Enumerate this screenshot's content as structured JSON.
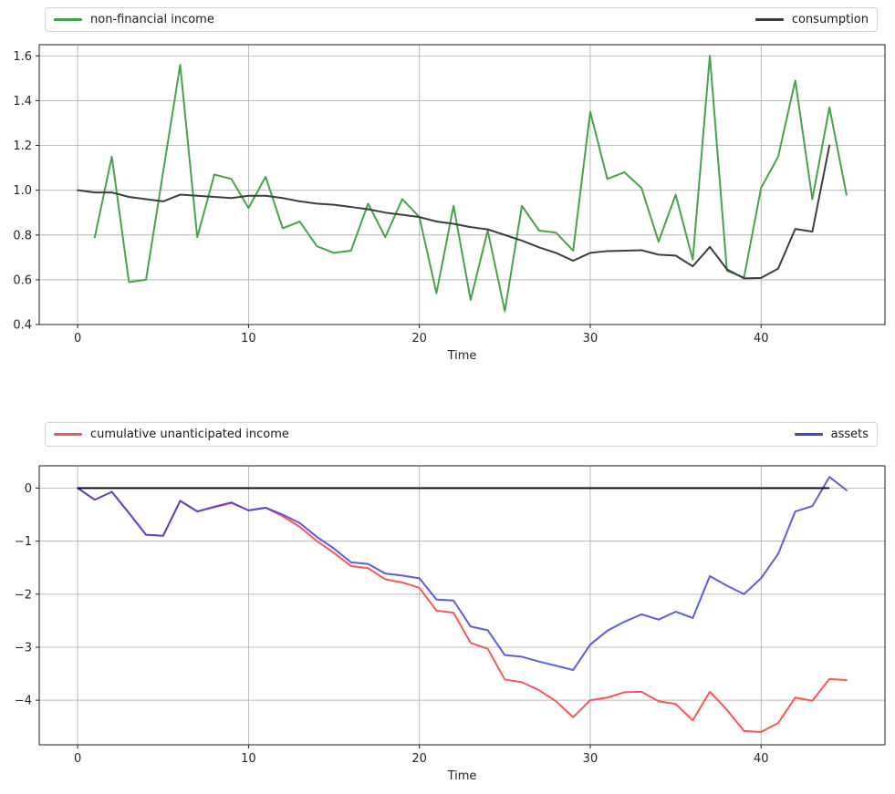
{
  "figure": {
    "background": "#ffffff",
    "grid_color": "#b4b4b4",
    "spine_color": "#1f1f1f",
    "tick_text_color": "#262626"
  },
  "chart_data": [
    {
      "type": "line",
      "title": "",
      "xlabel": "Time",
      "ylabel": "",
      "grid": true,
      "legend_position": "above plot, full-width box, items left and right",
      "xlim": [
        -2.25,
        47.25
      ],
      "ylim": [
        0.4,
        1.65
      ],
      "xticks": [
        0,
        10,
        20,
        30,
        40
      ],
      "xtick_labels": [
        "0",
        "10",
        "20",
        "30",
        "40"
      ],
      "yticks": [
        0.4,
        0.6,
        0.8,
        1.0,
        1.2,
        1.4,
        1.6
      ],
      "ytick_labels": [
        "0.4",
        "0.6",
        "0.8",
        "1.0",
        "1.2",
        "1.4",
        "1.6"
      ],
      "series": [
        {
          "name": "non-financial income",
          "color": "#46a34b",
          "opacity": 1,
          "line_width": 2,
          "x_start": 1,
          "values": [
            0.79,
            1.15,
            0.59,
            0.6,
            1.08,
            1.56,
            0.79,
            1.07,
            1.05,
            0.92,
            1.06,
            0.83,
            0.86,
            0.75,
            0.72,
            0.73,
            0.94,
            0.79,
            0.96,
            0.88,
            0.54,
            0.93,
            0.51,
            0.82,
            0.46,
            0.93,
            0.82,
            0.81,
            0.73,
            1.35,
            1.05,
            1.08,
            1.01,
            0.77,
            0.98,
            0.69,
            1.6,
            0.64,
            0.61,
            1.01,
            1.15,
            1.49,
            0.96,
            1.37,
            0.98
          ]
        },
        {
          "name": "consumption",
          "color": "#3d3d3d",
          "opacity": 1,
          "line_width": 2,
          "x_start": 0,
          "values": [
            1.0,
            0.99,
            0.99,
            0.97,
            0.96,
            0.95,
            0.98,
            0.975,
            0.97,
            0.965,
            0.975,
            0.975,
            0.965,
            0.95,
            0.94,
            0.935,
            0.925,
            0.915,
            0.9,
            0.89,
            0.88,
            0.86,
            0.85,
            0.835,
            0.825,
            0.8,
            0.775,
            0.745,
            0.72,
            0.685,
            0.72,
            0.728,
            0.73,
            0.732,
            0.712,
            0.708,
            0.66,
            0.747,
            0.647,
            0.606,
            0.608,
            0.65,
            0.827,
            0.815,
            1.2
          ]
        }
      ]
    },
    {
      "type": "line",
      "title": "",
      "xlabel": "Time",
      "ylabel": "",
      "grid": true,
      "legend_position": "above plot, full-width box, items left and right",
      "xlim": [
        -2.25,
        47.25
      ],
      "ylim": [
        -4.84,
        0.42
      ],
      "xticks": [
        0,
        10,
        20,
        30,
        40
      ],
      "xtick_labels": [
        "0",
        "10",
        "20",
        "30",
        "40"
      ],
      "yticks": [
        0,
        -1,
        -2,
        -3,
        -4
      ],
      "ytick_labels": [
        "0",
        "−1",
        "−2",
        "−3",
        "−4"
      ],
      "series": [
        {
          "name": "cumulative unanticipated income",
          "color": "#fc5555",
          "opacity": 1,
          "line_width": 2,
          "x_start": 0,
          "values": [
            0.0,
            -0.22,
            -0.07,
            -0.47,
            -0.88,
            -0.9,
            -0.24,
            -0.44,
            -0.36,
            -0.28,
            -0.42,
            -0.37,
            -0.53,
            -0.73,
            -1.0,
            -1.22,
            -1.47,
            -1.51,
            -1.72,
            -1.78,
            -1.88,
            -2.31,
            -2.35,
            -2.92,
            -3.03,
            -3.61,
            -3.66,
            -3.81,
            -4.02,
            -4.32,
            -4.0,
            -3.95,
            -3.85,
            -3.84,
            -4.02,
            -4.07,
            -4.38,
            -3.84,
            -4.18,
            -4.58,
            -4.6,
            -4.43,
            -3.95,
            -4.01,
            -3.6,
            -3.62
          ]
        },
        {
          "name": "assets",
          "color": "#4040e4",
          "opacity": 0.85,
          "line_width": 2,
          "x_start": 0,
          "values": [
            0.0,
            -0.22,
            -0.07,
            -0.47,
            -0.88,
            -0.9,
            -0.24,
            -0.44,
            -0.35,
            -0.27,
            -0.42,
            -0.37,
            -0.5,
            -0.66,
            -0.92,
            -1.14,
            -1.4,
            -1.43,
            -1.61,
            -1.65,
            -1.7,
            -2.1,
            -2.12,
            -2.61,
            -2.68,
            -3.15,
            -3.18,
            -3.27,
            -3.35,
            -3.43,
            -2.95,
            -2.69,
            -2.52,
            -2.38,
            -2.48,
            -2.33,
            -2.45,
            -1.66,
            -1.84,
            -2.0,
            -1.7,
            -1.24,
            -0.44,
            -0.34,
            0.21,
            -0.04
          ]
        },
        {
          "name": "zero line",
          "type": "hline",
          "color": "#000000",
          "opacity": 1,
          "line_width": 1.8,
          "y": 0,
          "x_from": 0,
          "x_to": 44
        }
      ]
    }
  ]
}
